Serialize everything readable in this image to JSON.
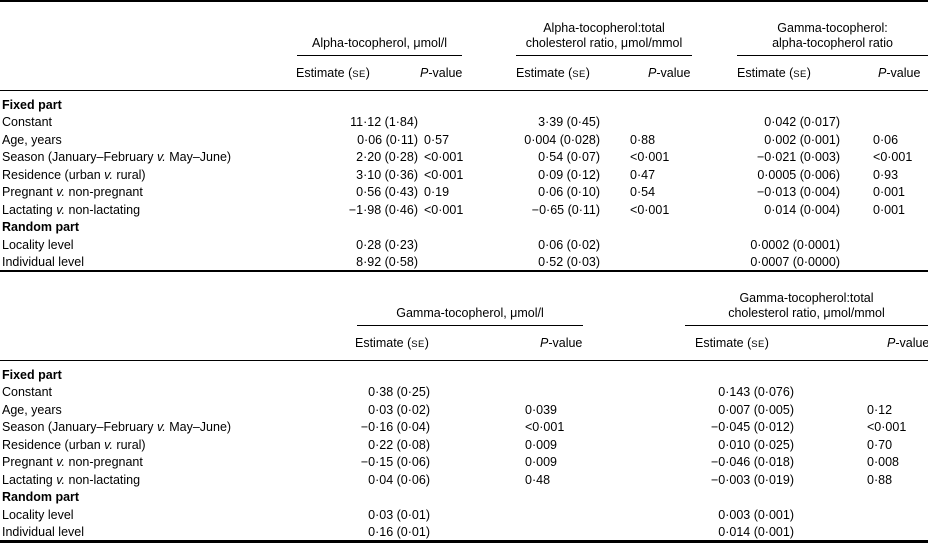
{
  "table1": {
    "groups": [
      {
        "title_html": "Alpha-tocopherol, μmol/l"
      },
      {
        "title_html": "Alpha-tocopherol:total<br>cholesterol ratio, μmol/mmol"
      },
      {
        "title_html": "Gamma-tocopherol:<br>alpha-tocopherol ratio"
      }
    ],
    "subheaders": {
      "estimate_html": "Estimate (<span class=\"sc\">SE</span>)",
      "pvalue_html": "<i>P</i>-value"
    },
    "rows": [
      {
        "label_html": "<b>Fixed part</b>",
        "cells": [
          "",
          "",
          "",
          "",
          "",
          ""
        ]
      },
      {
        "label_html": "Constant",
        "cells": [
          "11·12 (1·84)",
          "",
          "3·39 (0·45)",
          "",
          "0·042 (0·017)",
          ""
        ]
      },
      {
        "label_html": "Age, years",
        "cells": [
          "0·06 (0·11)",
          "0·57",
          "0·004 (0·028)",
          "0·88",
          "0·002 (0·001)",
          "0·06"
        ]
      },
      {
        "label_html": "Season (January–February <i>v.</i> May–June)",
        "cells": [
          "2·20 (0·28)",
          "<0·001",
          "0·54 (0·07)",
          "<0·001",
          "−0·021 (0·003)",
          "<0·001"
        ]
      },
      {
        "label_html": "Residence (urban <i>v.</i> rural)",
        "cells": [
          "3·10 (0·36)",
          "<0·001",
          "0·09 (0·12)",
          "0·47",
          "0·0005 (0·006)",
          "0·93"
        ]
      },
      {
        "label_html": "Pregnant <i>v.</i> non-pregnant",
        "cells": [
          "0·56 (0·43)",
          "0·19",
          "0·06 (0·10)",
          "0·54",
          "−0·013 (0·004)",
          "0·001"
        ]
      },
      {
        "label_html": "Lactating <i>v.</i> non-lactating",
        "cells": [
          "−1·98 (0·46)",
          "<0·001",
          "−0·65 (0·11)",
          "<0·001",
          "0·014 (0·004)",
          "0·001"
        ]
      },
      {
        "label_html": "<b>Random part</b>",
        "cells": [
          "",
          "",
          "",
          "",
          "",
          ""
        ]
      },
      {
        "label_html": "Locality level",
        "cells": [
          "0·28 (0·23)",
          "",
          "0·06 (0·02)",
          "",
          "0·0002 (0·0001)",
          ""
        ]
      },
      {
        "label_html": "Individual level",
        "cells": [
          "8·92 (0·58)",
          "",
          "0·52 (0·03)",
          "",
          "0·0007 (0·0000)",
          ""
        ]
      }
    ]
  },
  "table2": {
    "groups": [
      {
        "title_html": "Gamma-tocopherol, μmol/l"
      },
      {
        "title_html": "Gamma-tocopherol:total<br>cholesterol ratio, μmol/mmol"
      }
    ],
    "subheaders": {
      "estimate_html": "Estimate (<span class=\"sc\">SE</span>)",
      "pvalue_html": "<i>P</i>-value"
    },
    "rows": [
      {
        "label_html": "<b>Fixed part</b>",
        "cells": [
          "",
          "",
          "",
          ""
        ]
      },
      {
        "label_html": "Constant",
        "cells": [
          "0·38 (0·25)",
          "",
          "0·143 (0·076)",
          ""
        ]
      },
      {
        "label_html": "Age, years",
        "cells": [
          "0·03 (0·02)",
          "0·039",
          "0·007 (0·005)",
          "0·12"
        ]
      },
      {
        "label_html": "Season (January–February <i>v.</i> May–June)",
        "cells": [
          "−0·16 (0·04)",
          "<0·001",
          "−0·045 (0·012)",
          "<0·001"
        ]
      },
      {
        "label_html": "Residence (urban <i>v.</i> rural)",
        "cells": [
          "0·22 (0·08)",
          "0·009",
          "0·010 (0·025)",
          "0·70"
        ]
      },
      {
        "label_html": "Pregnant <i>v.</i> non-pregnant",
        "cells": [
          "−0·15 (0·06)",
          "0·009",
          "−0·046 (0·018)",
          "0·008"
        ]
      },
      {
        "label_html": "Lactating <i>v.</i> non-lactating",
        "cells": [
          "0·04 (0·06)",
          "0·48",
          "−0·003 (0·019)",
          "0·88"
        ]
      },
      {
        "label_html": "<b>Random part</b>",
        "cells": [
          "",
          "",
          "",
          ""
        ]
      },
      {
        "label_html": "Locality level",
        "cells": [
          "0·03 (0·01)",
          "",
          "0·003 (0·001)",
          ""
        ]
      },
      {
        "label_html": "Individual level",
        "cells": [
          "0·16 (0·01)",
          "",
          "0·014 (0·001)",
          ""
        ]
      }
    ]
  }
}
